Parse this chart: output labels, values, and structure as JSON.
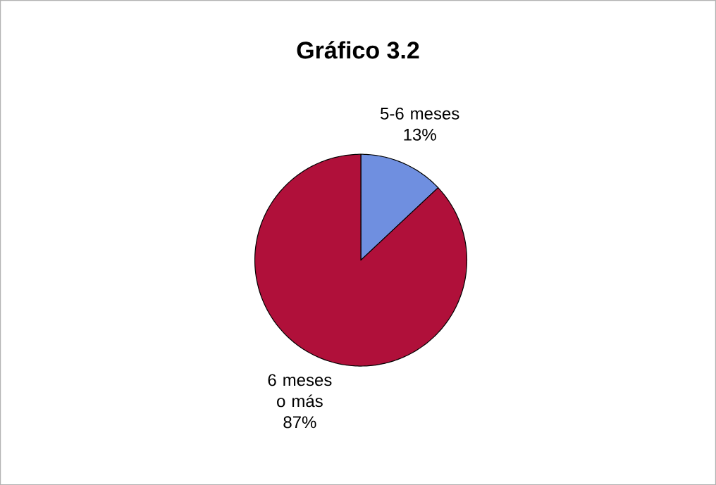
{
  "chart_data": {
    "type": "pie",
    "title": "Gráfico 3.2",
    "categories": [
      "5-6 meses",
      "6 meses o más"
    ],
    "values": [
      13,
      87
    ],
    "colors": [
      "#6f8fe0",
      "#b0103a"
    ],
    "value_labels": [
      "13%",
      "87%"
    ],
    "legend": false
  }
}
